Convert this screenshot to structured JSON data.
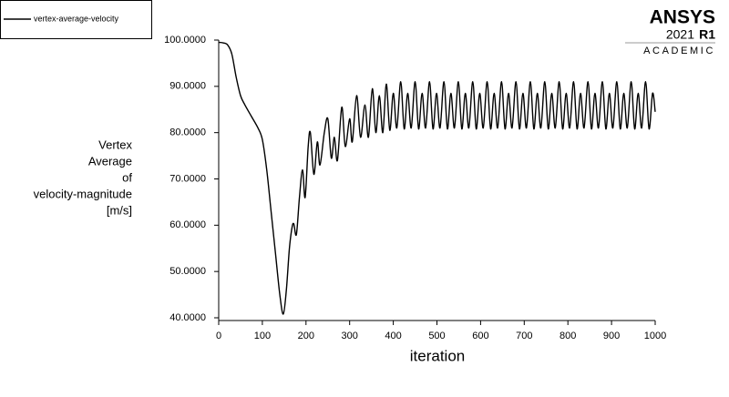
{
  "chart_data": {
    "type": "line",
    "legend": "top-left",
    "ylabel": [
      "Vertex",
      "Average",
      "of",
      "velocity-magnitude",
      "[m/s]"
    ],
    "xlabel": "iteration",
    "xlim": [
      0,
      1000
    ],
    "xticks": [
      0,
      100,
      200,
      300,
      400,
      500,
      600,
      700,
      800,
      900,
      1000
    ],
    "ylim": [
      40,
      100
    ],
    "yticks": [
      {
        "value": 40,
        "label": "40.0000"
      },
      {
        "value": 50,
        "label": "50.0000"
      },
      {
        "value": 60,
        "label": "60.0000"
      },
      {
        "value": 70,
        "label": "70.0000"
      },
      {
        "value": 80,
        "label": "80.0000"
      },
      {
        "value": 90,
        "label": "90.0000"
      },
      {
        "value": 100,
        "label": "100.0000"
      }
    ],
    "grid": false,
    "x": [
      0,
      10,
      20,
      30,
      40,
      50,
      60,
      75,
      90,
      100,
      110,
      120,
      130,
      140,
      148,
      155,
      162,
      168,
      172,
      178,
      185,
      192,
      198,
      205,
      210,
      218,
      226,
      232,
      242,
      250,
      258,
      265,
      272,
      282,
      290,
      300,
      306,
      316,
      325,
      335,
      343,
      352,
      360,
      368,
      376,
      384,
      392,
      400,
      408,
      417,
      425,
      433,
      441,
      450,
      458,
      466,
      474,
      483,
      491,
      499,
      507,
      516,
      524,
      532,
      540,
      549,
      557,
      565,
      573,
      582,
      590,
      598,
      606,
      615,
      623,
      631,
      639,
      648,
      656,
      664,
      672,
      681,
      689,
      697,
      705,
      714,
      722,
      730,
      738,
      747,
      755,
      763,
      771,
      780,
      788,
      796,
      804,
      813,
      821,
      829,
      837,
      846,
      854,
      862,
      870,
      879,
      887,
      895,
      903,
      912,
      920,
      928,
      936,
      945,
      953,
      961,
      969,
      978,
      986,
      994,
      1000
    ],
    "series": [
      {
        "name": "vertex-average-velocity",
        "color": "#000000",
        "values": [
          99.5,
          99.4,
          99,
          97,
          92,
          88,
          86,
          83.5,
          81,
          78.5,
          72,
          63,
          54,
          45,
          40.8,
          46,
          55,
          59.5,
          60.3,
          58,
          66,
          72,
          66,
          77,
          80,
          71,
          78,
          73,
          80,
          83,
          74.5,
          79,
          74,
          85.5,
          77,
          83,
          78,
          88,
          79,
          86,
          79,
          89.5,
          80,
          88,
          80,
          90.5,
          80.5,
          88.5,
          81,
          91,
          80.8,
          88.5,
          81,
          91,
          80.8,
          88.5,
          81,
          91,
          80.8,
          88.5,
          81,
          91,
          80.8,
          88.5,
          81,
          91,
          80.8,
          88.5,
          81,
          91,
          80.8,
          88.5,
          81,
          91,
          80.8,
          88.5,
          81,
          91,
          80.8,
          88.5,
          81,
          91,
          80.8,
          88.5,
          81,
          91,
          80.8,
          88.5,
          81,
          91,
          80.8,
          88.5,
          81,
          91,
          80.8,
          88.5,
          81,
          91,
          80.8,
          88.5,
          81,
          91,
          80.8,
          88.5,
          81,
          91,
          80.8,
          88.5,
          81,
          91,
          80.8,
          88.5,
          81,
          91,
          80.8,
          88.5,
          81,
          91,
          80.8,
          88.5,
          84.5
        ]
      }
    ]
  },
  "logo": {
    "name": "ANSYS",
    "version": "2021",
    "release": "R1",
    "edition": "ACADEMIC"
  }
}
